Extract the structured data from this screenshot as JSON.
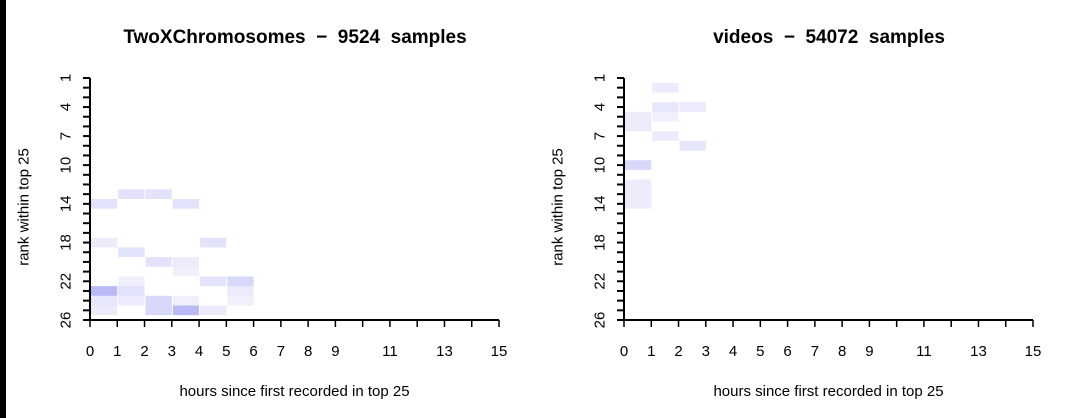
{
  "chart_data": [
    {
      "type": "heatmap",
      "title": "TwoXChromosomes  −  9524  samples",
      "xlabel": "hours since first recorded in top 25",
      "ylabel": "rank within top 25",
      "xlim": [
        0,
        15
      ],
      "ylim": [
        26,
        1
      ],
      "x_ticks": [
        "0",
        "1",
        "2",
        "3",
        "4",
        "5",
        "6",
        "7",
        "8",
        "9",
        "11",
        "13",
        "15"
      ],
      "x_tick_values": [
        0,
        1,
        2,
        3,
        4,
        5,
        6,
        7,
        8,
        9,
        11,
        13,
        15
      ],
      "y_ticks": [
        "1",
        "4",
        "7",
        "10",
        "14",
        "18",
        "22",
        "26"
      ],
      "y_tick_values": [
        1,
        4,
        7,
        10,
        14,
        18,
        22,
        26
      ],
      "cell_color": "#3a3ae6",
      "cells": [
        {
          "hour": 0,
          "rank": 14,
          "intensity": 0.15
        },
        {
          "hour": 1,
          "rank": 13,
          "intensity": 0.15
        },
        {
          "hour": 2,
          "rank": 13,
          "intensity": 0.15
        },
        {
          "hour": 3,
          "rank": 14,
          "intensity": 0.15
        },
        {
          "hour": 0,
          "rank": 18,
          "intensity": 0.1
        },
        {
          "hour": 1,
          "rank": 19,
          "intensity": 0.15
        },
        {
          "hour": 2,
          "rank": 20,
          "intensity": 0.15
        },
        {
          "hour": 3,
          "rank": 20,
          "intensity": 0.1
        },
        {
          "hour": 3,
          "rank": 21,
          "intensity": 0.07
        },
        {
          "hour": 4,
          "rank": 18,
          "intensity": 0.15
        },
        {
          "hour": 1,
          "rank": 22,
          "intensity": 0.08
        },
        {
          "hour": 0,
          "rank": 23,
          "intensity": 0.35
        },
        {
          "hour": 1,
          "rank": 23,
          "intensity": 0.15
        },
        {
          "hour": 0,
          "rank": 24,
          "intensity": 0.12
        },
        {
          "hour": 1,
          "rank": 24,
          "intensity": 0.1
        },
        {
          "hour": 2,
          "rank": 24,
          "intensity": 0.2
        },
        {
          "hour": 3,
          "rank": 24,
          "intensity": 0.08
        },
        {
          "hour": 0,
          "rank": 25,
          "intensity": 0.1
        },
        {
          "hour": 2,
          "rank": 25,
          "intensity": 0.2
        },
        {
          "hour": 3,
          "rank": 25,
          "intensity": 0.35
        },
        {
          "hour": 4,
          "rank": 25,
          "intensity": 0.1
        },
        {
          "hour": 4,
          "rank": 22,
          "intensity": 0.15
        },
        {
          "hour": 5,
          "rank": 22,
          "intensity": 0.2
        },
        {
          "hour": 5,
          "rank": 23,
          "intensity": 0.1
        },
        {
          "hour": 5,
          "rank": 24,
          "intensity": 0.08
        }
      ]
    },
    {
      "type": "heatmap",
      "title": "videos  −  54072  samples",
      "xlabel": "hours since first recorded in top 25",
      "ylabel": "rank within top 25",
      "xlim": [
        0,
        15
      ],
      "ylim": [
        26,
        1
      ],
      "x_ticks": [
        "0",
        "1",
        "2",
        "3",
        "4",
        "5",
        "6",
        "7",
        "8",
        "9",
        "11",
        "13",
        "15"
      ],
      "x_tick_values": [
        0,
        1,
        2,
        3,
        4,
        5,
        6,
        7,
        8,
        9,
        11,
        13,
        15
      ],
      "y_ticks": [
        "1",
        "4",
        "7",
        "10",
        "14",
        "18",
        "22",
        "26"
      ],
      "y_tick_values": [
        1,
        4,
        7,
        10,
        14,
        18,
        22,
        26
      ],
      "cell_color": "#3a3ae6",
      "cells": [
        {
          "hour": 1,
          "rank": 2,
          "intensity": 0.1
        },
        {
          "hour": 1,
          "rank": 4,
          "intensity": 0.12
        },
        {
          "hour": 2,
          "rank": 4,
          "intensity": 0.1
        },
        {
          "hour": 0,
          "rank": 5,
          "intensity": 0.1
        },
        {
          "hour": 1,
          "rank": 5,
          "intensity": 0.08
        },
        {
          "hour": 0,
          "rank": 6,
          "intensity": 0.1
        },
        {
          "hour": 1,
          "rank": 7,
          "intensity": 0.1
        },
        {
          "hour": 2,
          "rank": 8,
          "intensity": 0.12
        },
        {
          "hour": 0,
          "rank": 10,
          "intensity": 0.2
        },
        {
          "hour": 0,
          "rank": 12,
          "intensity": 0.1
        },
        {
          "hour": 0,
          "rank": 13,
          "intensity": 0.1
        },
        {
          "hour": 0,
          "rank": 14,
          "intensity": 0.1
        }
      ]
    }
  ]
}
